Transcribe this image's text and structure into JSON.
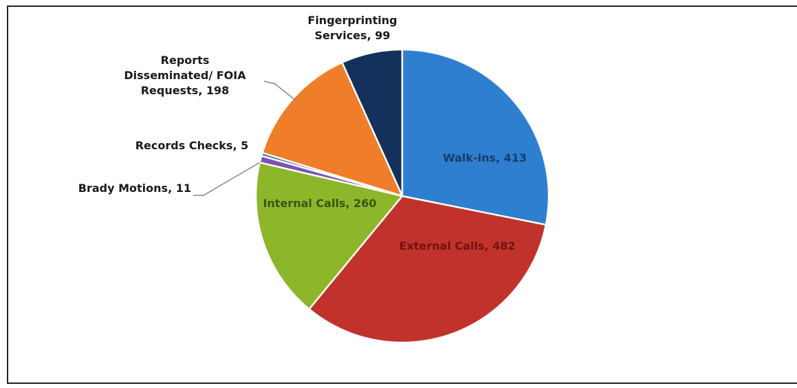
{
  "chart_data": {
    "type": "pie",
    "categories": [
      "Walk-ins",
      "External Calls",
      "Internal Calls",
      "Brady Motions",
      "Records Checks",
      "Reports Disseminated/ FOIA Requests",
      "Fingerprinting Services"
    ],
    "values": [
      413,
      482,
      260,
      11,
      5,
      198,
      99
    ],
    "colors": [
      "#2e7fcf",
      "#c1322c",
      "#8db62b",
      "#7b54b2",
      "#2c5aa6",
      "#f07d29",
      "#13315b"
    ],
    "start_angle": 0,
    "direction": "clockwise"
  }
}
